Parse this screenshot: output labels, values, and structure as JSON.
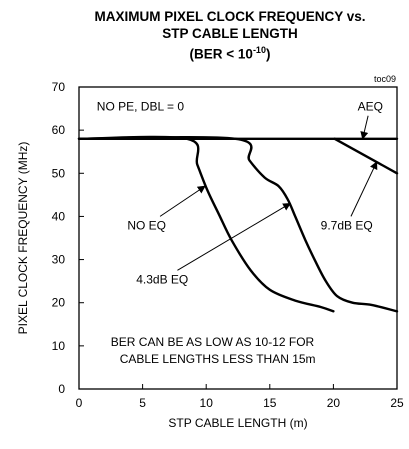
{
  "title_line1": "MAXIMUM PIXEL CLOCK FREQUENCY vs.",
  "title_line2": "STP CABLE LENGTH",
  "title_line3_prefix": "(BER < 10",
  "title_line3_exp": "-10",
  "title_line3_suffix": ")",
  "chart_data": {
    "type": "line",
    "chart_id": "toc09",
    "xlabel": "STP CABLE LENGTH (m)",
    "ylabel": "PIXEL CLOCK FREQUENCY (MHz)",
    "xlim": [
      0,
      25
    ],
    "ylim": [
      0,
      70
    ],
    "x_ticks": [
      0,
      5,
      10,
      15,
      20,
      25
    ],
    "y_ticks": [
      0,
      10,
      20,
      30,
      40,
      50,
      60,
      70
    ],
    "grid": false,
    "series": [
      {
        "name": "NO EQ",
        "x": [
          0,
          8.5,
          9.3,
          10.1,
          11,
          12,
          13.5,
          15,
          17,
          19,
          20
        ],
        "y": [
          58,
          58,
          52,
          46,
          40.5,
          34.5,
          27.5,
          23,
          20.5,
          19,
          18
        ]
      },
      {
        "name": "4.3dB EQ",
        "x": [
          0,
          12.3,
          13.4,
          14.6,
          15.7,
          16.4,
          17,
          17.8,
          18.6,
          19.4,
          20.3,
          21.5,
          23,
          25
        ],
        "y": [
          58,
          58,
          53,
          49,
          47,
          44,
          40,
          34.5,
          29.5,
          25,
          21.5,
          20,
          19.5,
          18
        ]
      },
      {
        "name": "9.7dB EQ",
        "x": [
          20.1,
          25
        ],
        "y": [
          58,
          50
        ]
      },
      {
        "name": "AEQ",
        "x": [
          0,
          25
        ],
        "y": [
          58,
          58
        ]
      }
    ],
    "annotations": [
      {
        "text": "NO PE, DBL = 0",
        "x": 1.4,
        "y": 64.5
      },
      {
        "text": "AEQ",
        "x": 21.9,
        "y": 64.5,
        "arrow_to": [
          22.3,
          58
        ]
      },
      {
        "text": "NO EQ",
        "x": 3.8,
        "y": 37,
        "arrow_to": [
          9.9,
          47
        ]
      },
      {
        "text": "4.3dB EQ",
        "x": 4.5,
        "y": 24.5,
        "arrow_to": [
          16.6,
          43
        ]
      },
      {
        "text": "9.7dB EQ",
        "x": 19,
        "y": 37,
        "arrow_to": [
          23.4,
          52.6
        ]
      },
      {
        "text": "BER CAN BE AS LOW AS 10-12 FOR",
        "x": 2.5,
        "y": 10
      },
      {
        "text": "CABLE LENGTHS LESS THAN 15m",
        "x": 3.2,
        "y": 6
      }
    ]
  }
}
